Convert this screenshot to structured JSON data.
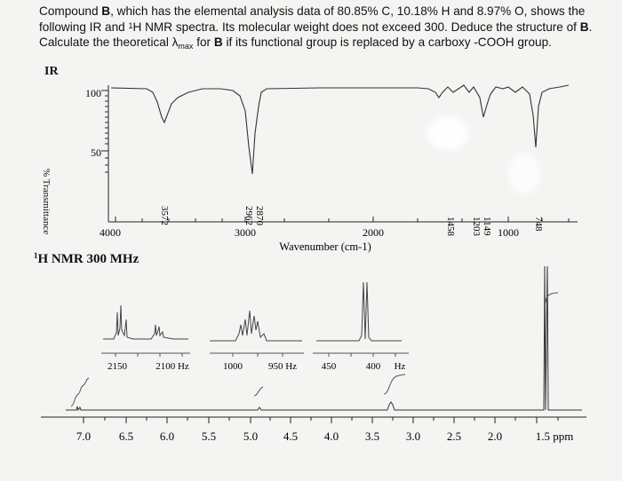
{
  "question": {
    "p1": "Compound ",
    "b1": "B",
    "p2": ", which has the elemental analysis data of 80.85% C, 10.18% H and 8.97% O, shows the following IR and ",
    "sup1": "1",
    "p3": "H NMR spectra.  Its molecular weight does not exceed 300. Deduce the structure of ",
    "b2": "B",
    "p4": ".  Calculate the theoretical λ",
    "sub1": "max",
    "p5": " for ",
    "b3": "B",
    "p6": " if its functional group is replaced by a carboxy -COOH group."
  },
  "ir": {
    "heading": "IR",
    "ylabel": "% Transmittance",
    "yticks": [
      "100",
      "50"
    ],
    "xticks": [
      "4000",
      "3000",
      "2000",
      "1000"
    ],
    "xlabel": "Wavenumber (cm-1)",
    "peak_labels": [
      "3572",
      "2962",
      "2870",
      "1458",
      "1203",
      "1149",
      "748"
    ]
  },
  "nmr": {
    "heading_sup": "1",
    "heading": "H NMR 300 MHz",
    "inset1_ticks": [
      "2150",
      "2100 Hz"
    ],
    "inset2_ticks": [
      "1000",
      "950 Hz"
    ],
    "inset3_ticks": [
      "450",
      "400",
      "Hz"
    ],
    "axis_ticks": [
      "7.0",
      "6.5",
      "6.0",
      "5.5",
      "5.0",
      "4.5",
      "4.0",
      "3.5",
      "3.0",
      "2.5",
      "2.0",
      "1.5 ppm"
    ]
  },
  "colors": {
    "text": "#111111",
    "spectrum": "#333333",
    "glare": "#ffffff"
  }
}
